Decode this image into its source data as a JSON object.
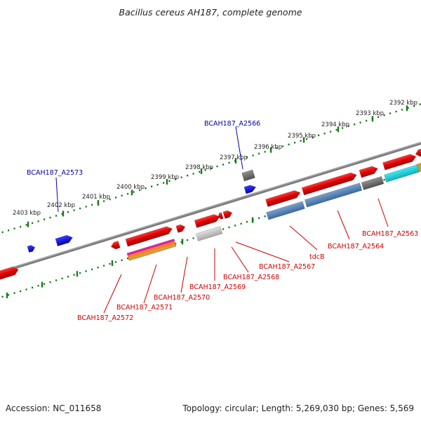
{
  "title": "Bacillus cereus AH187, complete genome",
  "footer": {
    "accession": "Accession: NC_011658",
    "stats": "Topology: circular; Length: 5,269,030 bp; Genes: 5,569"
  },
  "colors": {
    "backbone": "#808080",
    "ticks": "#1a7a1a",
    "blue_label": "#0000aa",
    "red_label": "#cc0000"
  },
  "kbp_ticks": [
    {
      "label": "2392 kbp"
    },
    {
      "label": "2393 kbp"
    },
    {
      "label": "2394 kbp"
    },
    {
      "label": "2395 kbp"
    },
    {
      "label": "2396 kbp"
    },
    {
      "label": "2397 kbp"
    },
    {
      "label": "2398 kbp"
    },
    {
      "label": "2399 kbp"
    },
    {
      "label": "2400 kbp"
    },
    {
      "label": "2401 kbp"
    },
    {
      "label": "2402 kbp"
    },
    {
      "label": "2403 kbp"
    }
  ],
  "gene_labels_top": [
    {
      "name": "BCAH187_A2566"
    },
    {
      "name": "BCAH187_A2573"
    }
  ],
  "gene_labels_bottom": [
    {
      "name": "BCAH187_A2563"
    },
    {
      "name": "BCAH187_A2564"
    },
    {
      "name": "tdcB"
    },
    {
      "name": "BCAH187_A2567"
    },
    {
      "name": "BCAH187_A2568"
    },
    {
      "name": "BCAH187_A2569"
    },
    {
      "name": "BCAH187_A2570"
    },
    {
      "name": "BCAH187_A2571"
    },
    {
      "name": "BCAH187_A2572"
    }
  ]
}
